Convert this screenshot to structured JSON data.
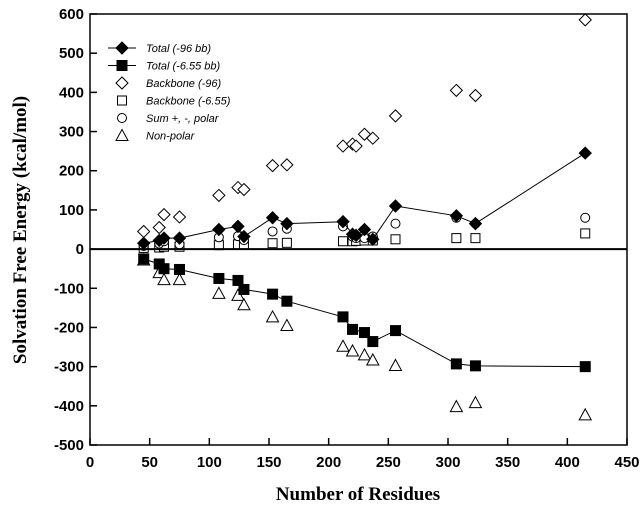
{
  "chart_data": {
    "type": "scatter",
    "title": "",
    "xlabel": "Number of Residues",
    "ylabel": "Solvation Free Energy (kcal/mol)",
    "xlim": [
      0,
      450
    ],
    "ylim": [
      -500,
      600
    ],
    "xticks": [
      0,
      50,
      100,
      150,
      200,
      250,
      300,
      350,
      400,
      450
    ],
    "yticks": [
      -500,
      -400,
      -300,
      -200,
      -100,
      0,
      100,
      200,
      300,
      400,
      500,
      600
    ],
    "zero_line": true,
    "grid": false,
    "legend_position": "top-left",
    "series": [
      {
        "name": "Total (-96 bb)",
        "marker": "filled-diamond",
        "line": true,
        "points": [
          [
            45,
            15
          ],
          [
            58,
            22
          ],
          [
            62,
            28
          ],
          [
            75,
            28
          ],
          [
            108,
            50
          ],
          [
            124,
            58
          ],
          [
            129,
            32
          ],
          [
            153,
            80
          ],
          [
            165,
            65
          ],
          [
            212,
            70
          ],
          [
            220,
            38
          ],
          [
            223,
            35
          ],
          [
            230,
            50
          ],
          [
            237,
            25
          ],
          [
            256,
            110
          ],
          [
            307,
            85
          ],
          [
            323,
            65
          ],
          [
            415,
            245
          ]
        ]
      },
      {
        "name": "Total (-6.55 bb)",
        "marker": "filled-square",
        "line": true,
        "points": [
          [
            45,
            -25
          ],
          [
            58,
            -38
          ],
          [
            62,
            -50
          ],
          [
            75,
            -52
          ],
          [
            108,
            -75
          ],
          [
            124,
            -80
          ],
          [
            129,
            -103
          ],
          [
            153,
            -115
          ],
          [
            165,
            -133
          ],
          [
            212,
            -173
          ],
          [
            220,
            -205
          ],
          [
            230,
            -213
          ],
          [
            237,
            -236
          ],
          [
            256,
            -208
          ],
          [
            307,
            -293
          ],
          [
            323,
            -298
          ],
          [
            415,
            -300
          ]
        ]
      },
      {
        "name": "Backbone (-96)",
        "marker": "open-diamond",
        "line": false,
        "points": [
          [
            45,
            45
          ],
          [
            58,
            55
          ],
          [
            62,
            88
          ],
          [
            75,
            82
          ],
          [
            108,
            137
          ],
          [
            124,
            157
          ],
          [
            129,
            152
          ],
          [
            153,
            213
          ],
          [
            165,
            215
          ],
          [
            212,
            263
          ],
          [
            220,
            268
          ],
          [
            223,
            263
          ],
          [
            230,
            293
          ],
          [
            237,
            283
          ],
          [
            256,
            340
          ],
          [
            307,
            405
          ],
          [
            323,
            392
          ],
          [
            415,
            585
          ]
        ]
      },
      {
        "name": "Backbone (-6.55)",
        "marker": "open-square",
        "line": false,
        "points": [
          [
            45,
            3
          ],
          [
            58,
            4
          ],
          [
            62,
            6
          ],
          [
            75,
            6
          ],
          [
            108,
            10
          ],
          [
            124,
            12
          ],
          [
            129,
            12
          ],
          [
            153,
            15
          ],
          [
            165,
            16
          ],
          [
            212,
            20
          ],
          [
            220,
            20
          ],
          [
            223,
            21
          ],
          [
            230,
            22
          ],
          [
            237,
            22
          ],
          [
            256,
            25
          ],
          [
            307,
            28
          ],
          [
            323,
            28
          ],
          [
            415,
            40
          ]
        ]
      },
      {
        "name": "Sum +, -, polar",
        "marker": "open-circle",
        "line": false,
        "points": [
          [
            45,
            8
          ],
          [
            58,
            14
          ],
          [
            62,
            20
          ],
          [
            75,
            12
          ],
          [
            108,
            30
          ],
          [
            124,
            33
          ],
          [
            129,
            23
          ],
          [
            153,
            45
          ],
          [
            165,
            52
          ],
          [
            212,
            58
          ],
          [
            220,
            32
          ],
          [
            223,
            28
          ],
          [
            230,
            28
          ],
          [
            237,
            32
          ],
          [
            256,
            65
          ],
          [
            307,
            80
          ],
          [
            323,
            65
          ],
          [
            415,
            80
          ]
        ]
      },
      {
        "name": "Non-polar",
        "marker": "open-triangle",
        "line": false,
        "points": [
          [
            45,
            -28
          ],
          [
            58,
            -60
          ],
          [
            62,
            -78
          ],
          [
            75,
            -78
          ],
          [
            108,
            -113
          ],
          [
            124,
            -118
          ],
          [
            129,
            -142
          ],
          [
            153,
            -173
          ],
          [
            165,
            -195
          ],
          [
            212,
            -248
          ],
          [
            220,
            -260
          ],
          [
            230,
            -270
          ],
          [
            237,
            -283
          ],
          [
            256,
            -297
          ],
          [
            307,
            -402
          ],
          [
            323,
            -392
          ],
          [
            415,
            -423
          ]
        ]
      }
    ]
  }
}
